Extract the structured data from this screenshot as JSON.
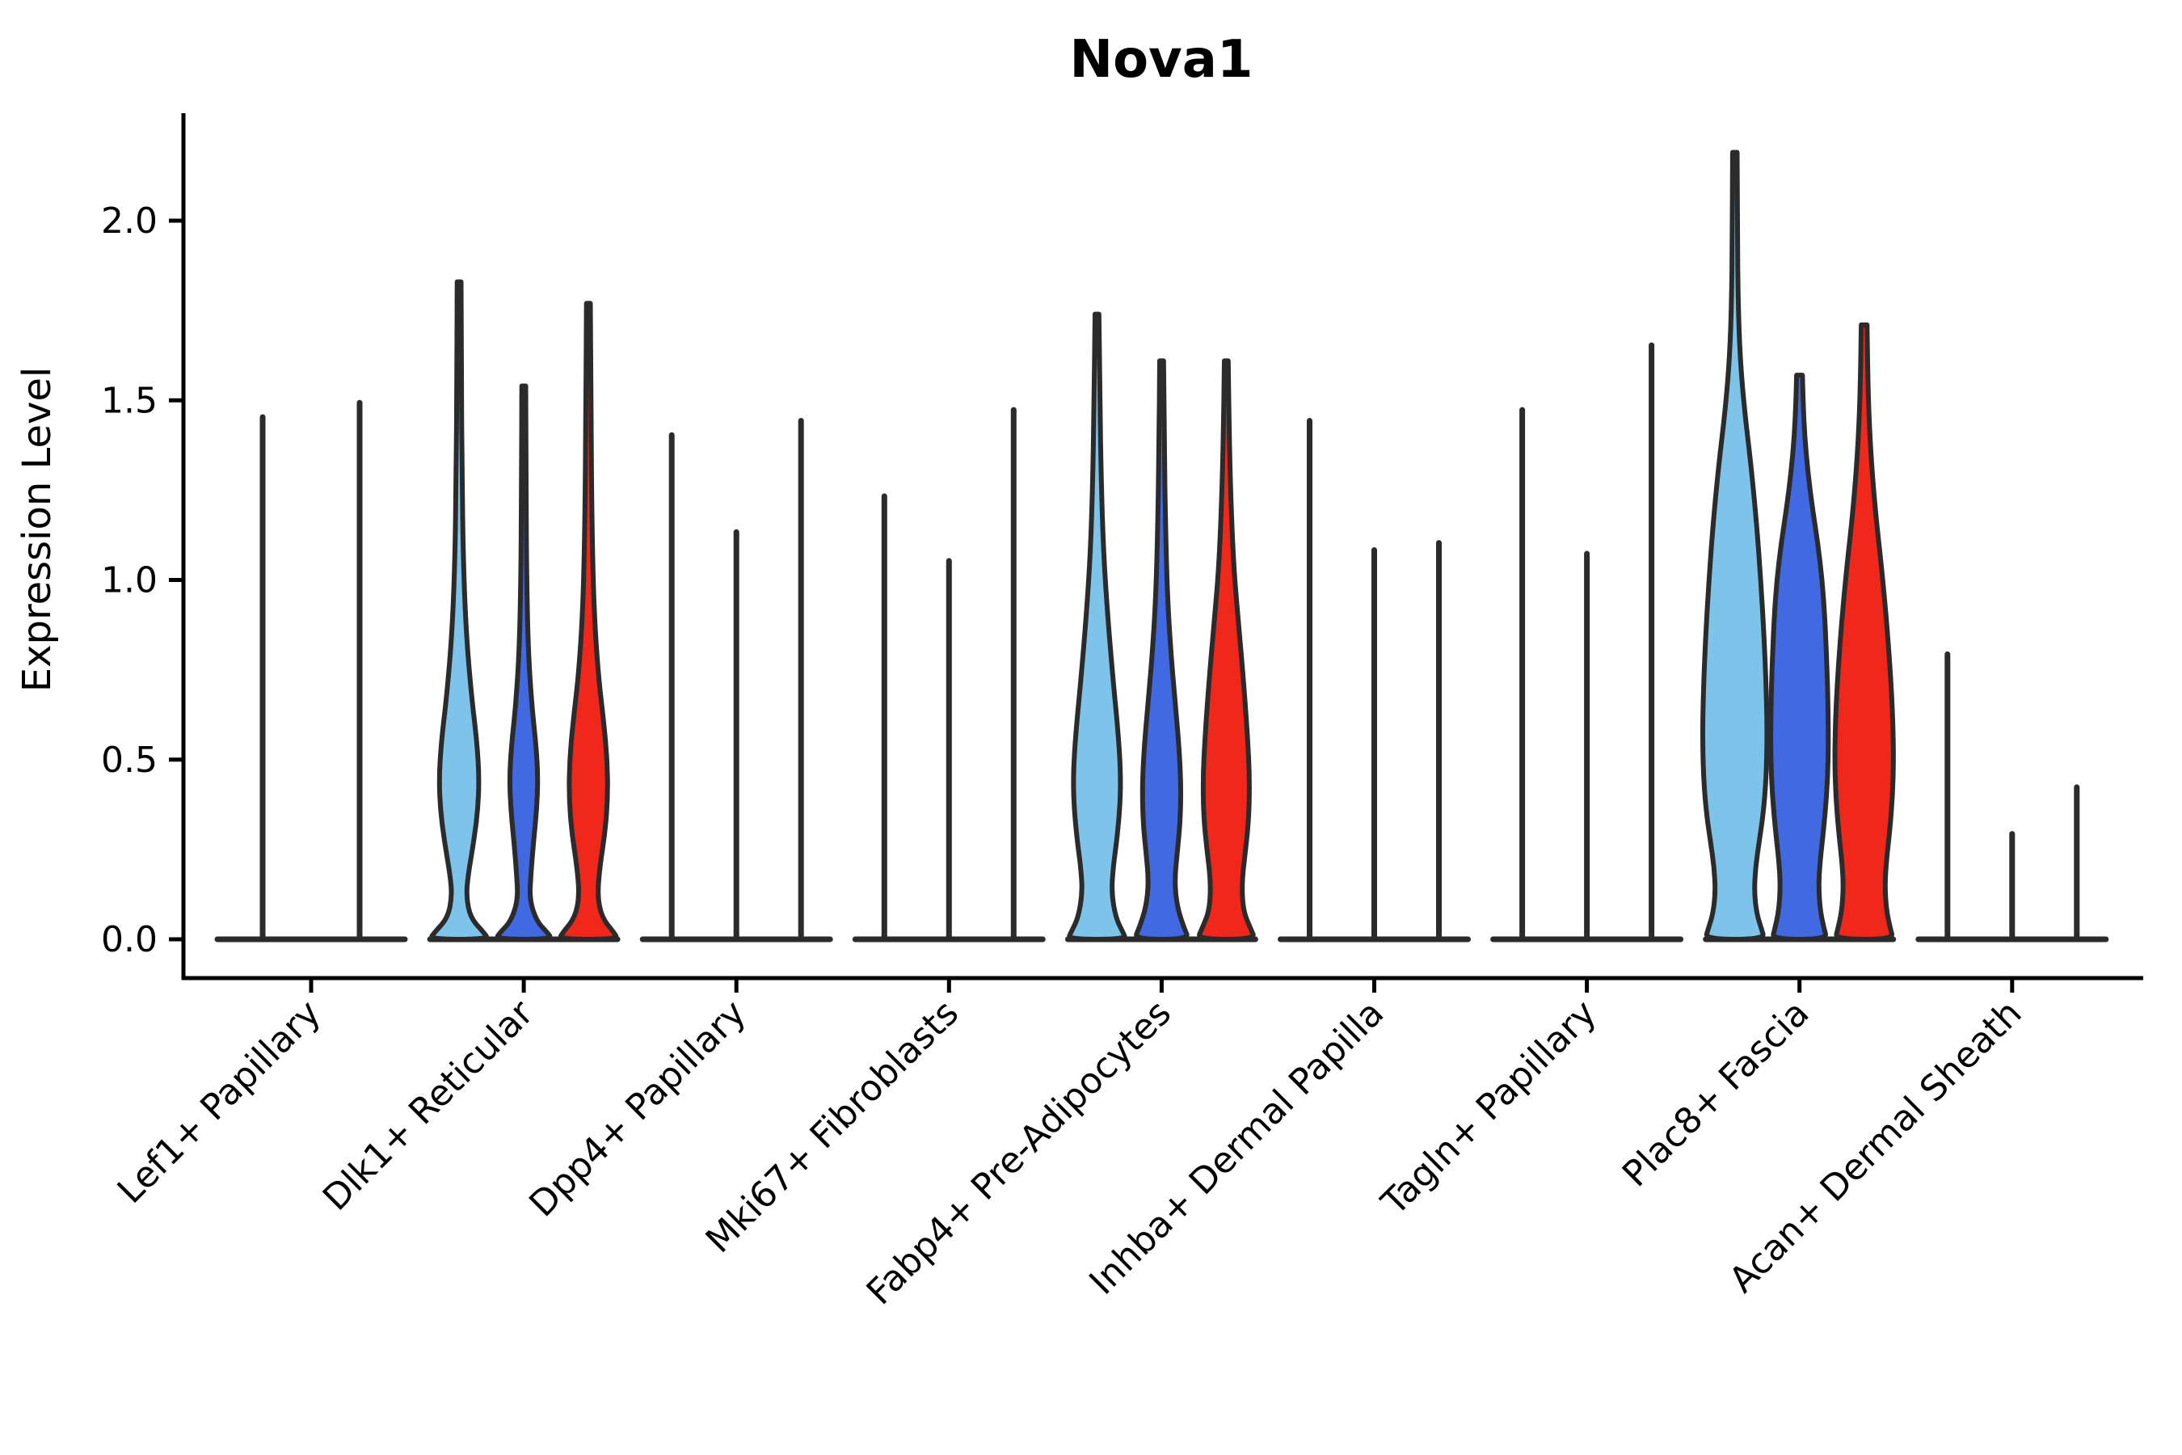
{
  "chart_data": {
    "type": "violin",
    "title": "Nova1",
    "ylabel": "Expression Level",
    "xlabel": "",
    "ylim": [
      0,
      2.3
    ],
    "yticks": [
      0,
      0.5,
      1.0,
      1.5,
      2.0
    ],
    "ytick_labels": [
      "0.0",
      "0.5",
      "1.0",
      "1.5",
      "2.0"
    ],
    "grid": false,
    "legend": "none",
    "colors": {
      "light_blue": "#7EC4EA",
      "blue": "#4169E1",
      "red": "#F0281C",
      "outline": "#2B2B2B",
      "axis": "#000000"
    },
    "categories": [
      "Lef1+ Papillary",
      "Dlk1+ Reticular",
      "Dpp4+ Papillary",
      "Mki67+ Fibroblasts",
      "Fabp4+ Pre-Adipocytes",
      "Inhba+ Dermal Papilla",
      "Tagln+ Papillary",
      "Plac8+ Fascia",
      "Acan+ Dermal Sheath"
    ],
    "groups": [
      {
        "category": "Lef1+ Papillary",
        "violins": [
          {
            "color_key": null,
            "shape": "spike",
            "max": 1.46
          },
          {
            "color_key": null,
            "shape": "spike",
            "max": 1.5
          }
        ]
      },
      {
        "category": "Dlk1+ Reticular",
        "violins": [
          {
            "color_key": "light_blue",
            "shape": "body",
            "max": 1.83,
            "profile": [
              [
                1.83,
                0.06
              ],
              [
                1.55,
                0.07
              ],
              [
                1.3,
                0.09
              ],
              [
                1.05,
                0.13
              ],
              [
                0.85,
                0.22
              ],
              [
                0.68,
                0.38
              ],
              [
                0.55,
                0.55
              ],
              [
                0.45,
                0.62
              ],
              [
                0.36,
                0.58
              ],
              [
                0.27,
                0.45
              ],
              [
                0.18,
                0.28
              ],
              [
                0.12,
                0.22
              ],
              [
                0.06,
                0.35
              ],
              [
                0.02,
                0.75
              ],
              [
                0,
                0.92
              ]
            ]
          },
          {
            "color_key": "blue",
            "shape": "body",
            "max": 1.54,
            "profile": [
              [
                1.54,
                0.06
              ],
              [
                1.25,
                0.07
              ],
              [
                1.0,
                0.09
              ],
              [
                0.8,
                0.14
              ],
              [
                0.65,
                0.25
              ],
              [
                0.54,
                0.38
              ],
              [
                0.45,
                0.44
              ],
              [
                0.36,
                0.4
              ],
              [
                0.27,
                0.3
              ],
              [
                0.18,
                0.22
              ],
              [
                0.11,
                0.18
              ],
              [
                0.05,
                0.4
              ],
              [
                0.02,
                0.72
              ],
              [
                0,
                0.88
              ]
            ]
          },
          {
            "color_key": "red",
            "shape": "body",
            "max": 1.77,
            "profile": [
              [
                1.77,
                0.06
              ],
              [
                1.45,
                0.08
              ],
              [
                1.15,
                0.11
              ],
              [
                0.92,
                0.17
              ],
              [
                0.74,
                0.3
              ],
              [
                0.6,
                0.48
              ],
              [
                0.5,
                0.58
              ],
              [
                0.4,
                0.6
              ],
              [
                0.3,
                0.52
              ],
              [
                0.2,
                0.35
              ],
              [
                0.12,
                0.28
              ],
              [
                0.06,
                0.42
              ],
              [
                0.02,
                0.78
              ],
              [
                0,
                0.92
              ]
            ]
          }
        ]
      },
      {
        "category": "Dpp4+ Papillary",
        "violins": [
          {
            "color_key": "light_blue",
            "shape": "spike",
            "max": 1.41
          },
          {
            "color_key": "blue",
            "shape": "spike",
            "max": 1.14
          },
          {
            "color_key": "red",
            "shape": "spike",
            "max": 1.45
          }
        ]
      },
      {
        "category": "Mki67+ Fibroblasts",
        "violins": [
          {
            "color_key": "light_blue",
            "shape": "spike",
            "max": 1.24
          },
          {
            "color_key": "blue",
            "shape": "spike",
            "max": 1.06
          },
          {
            "color_key": "red",
            "shape": "spike",
            "max": 1.48
          }
        ]
      },
      {
        "category": "Fabp4+ Pre-Adipocytes",
        "violins": [
          {
            "color_key": "light_blue",
            "shape": "body",
            "max": 1.74,
            "profile": [
              [
                1.74,
                0.06
              ],
              [
                1.5,
                0.09
              ],
              [
                1.28,
                0.13
              ],
              [
                1.08,
                0.2
              ],
              [
                0.9,
                0.33
              ],
              [
                0.72,
                0.5
              ],
              [
                0.58,
                0.65
              ],
              [
                0.47,
                0.73
              ],
              [
                0.38,
                0.72
              ],
              [
                0.28,
                0.62
              ],
              [
                0.2,
                0.5
              ],
              [
                0.13,
                0.45
              ],
              [
                0.06,
                0.58
              ],
              [
                0.02,
                0.8
              ],
              [
                0,
                0.9
              ]
            ]
          },
          {
            "color_key": "blue",
            "shape": "body",
            "max": 1.61,
            "profile": [
              [
                1.61,
                0.06
              ],
              [
                1.38,
                0.08
              ],
              [
                1.15,
                0.12
              ],
              [
                0.95,
                0.18
              ],
              [
                0.78,
                0.3
              ],
              [
                0.63,
                0.45
              ],
              [
                0.52,
                0.55
              ],
              [
                0.42,
                0.6
              ],
              [
                0.32,
                0.57
              ],
              [
                0.24,
                0.48
              ],
              [
                0.16,
                0.4
              ],
              [
                0.09,
                0.48
              ],
              [
                0.03,
                0.7
              ],
              [
                0,
                0.85
              ]
            ]
          },
          {
            "color_key": "red",
            "shape": "body",
            "max": 1.61,
            "profile": [
              [
                1.61,
                0.06
              ],
              [
                1.4,
                0.09
              ],
              [
                1.2,
                0.15
              ],
              [
                1.02,
                0.24
              ],
              [
                0.86,
                0.4
              ],
              [
                0.7,
                0.55
              ],
              [
                0.56,
                0.66
              ],
              [
                0.45,
                0.72
              ],
              [
                0.34,
                0.7
              ],
              [
                0.25,
                0.6
              ],
              [
                0.16,
                0.48
              ],
              [
                0.08,
                0.52
              ],
              [
                0.03,
                0.75
              ],
              [
                0,
                0.9
              ]
            ]
          }
        ]
      },
      {
        "category": "Inhba+ Dermal Papilla",
        "violins": [
          {
            "color_key": "light_blue",
            "shape": "spike",
            "max": 1.45
          },
          {
            "color_key": "blue",
            "shape": "spike",
            "max": 1.09
          },
          {
            "color_key": "red",
            "shape": "spike",
            "max": 1.11
          }
        ]
      },
      {
        "category": "Tagln+ Papillary",
        "violins": [
          {
            "color_key": "light_blue",
            "shape": "spike",
            "max": 1.48
          },
          {
            "color_key": "blue",
            "shape": "spike",
            "max": 1.08
          },
          {
            "color_key": "red",
            "shape": "spike",
            "max": 1.66
          }
        ]
      },
      {
        "category": "Plac8+ Fascia",
        "violins": [
          {
            "color_key": "light_blue",
            "shape": "body",
            "max": 2.19,
            "profile": [
              [
                2.19,
                0.07
              ],
              [
                1.95,
                0.08
              ],
              [
                1.78,
                0.1
              ],
              [
                1.62,
                0.16
              ],
              [
                1.47,
                0.3
              ],
              [
                1.32,
                0.5
              ],
              [
                1.15,
                0.68
              ],
              [
                1.0,
                0.8
              ],
              [
                0.85,
                0.9
              ],
              [
                0.7,
                0.97
              ],
              [
                0.57,
                1.0
              ],
              [
                0.45,
                0.97
              ],
              [
                0.35,
                0.88
              ],
              [
                0.27,
                0.75
              ],
              [
                0.2,
                0.64
              ],
              [
                0.13,
                0.6
              ],
              [
                0.07,
                0.68
              ],
              [
                0.03,
                0.82
              ],
              [
                0,
                0.92
              ]
            ]
          },
          {
            "color_key": "blue",
            "shape": "body",
            "max": 1.57,
            "profile": [
              [
                1.57,
                0.09
              ],
              [
                1.5,
                0.11
              ],
              [
                1.4,
                0.16
              ],
              [
                1.3,
                0.26
              ],
              [
                1.2,
                0.4
              ],
              [
                1.1,
                0.57
              ],
              [
                1.0,
                0.7
              ],
              [
                0.9,
                0.78
              ],
              [
                0.8,
                0.83
              ],
              [
                0.7,
                0.87
              ],
              [
                0.6,
                0.89
              ],
              [
                0.5,
                0.89
              ],
              [
                0.4,
                0.84
              ],
              [
                0.3,
                0.74
              ],
              [
                0.22,
                0.64
              ],
              [
                0.15,
                0.59
              ],
              [
                0.08,
                0.64
              ],
              [
                0.03,
                0.76
              ],
              [
                0,
                0.85
              ]
            ]
          },
          {
            "color_key": "red",
            "shape": "body",
            "max": 1.71,
            "profile": [
              [
                1.71,
                0.09
              ],
              [
                1.58,
                0.11
              ],
              [
                1.45,
                0.15
              ],
              [
                1.32,
                0.23
              ],
              [
                1.18,
                0.36
              ],
              [
                1.05,
                0.52
              ],
              [
                0.93,
                0.65
              ],
              [
                0.82,
                0.75
              ],
              [
                0.7,
                0.84
              ],
              [
                0.6,
                0.89
              ],
              [
                0.5,
                0.91
              ],
              [
                0.4,
                0.88
              ],
              [
                0.3,
                0.79
              ],
              [
                0.22,
                0.69
              ],
              [
                0.15,
                0.64
              ],
              [
                0.08,
                0.69
              ],
              [
                0.03,
                0.81
              ],
              [
                0,
                0.9
              ]
            ]
          }
        ]
      },
      {
        "category": "Acan+ Dermal Sheath",
        "violins": [
          {
            "color_key": "light_blue",
            "shape": "spike",
            "max": 0.8
          },
          {
            "color_key": "blue",
            "shape": "spike",
            "max": 0.3
          },
          {
            "color_key": "red",
            "shape": "spike",
            "max": 0.43
          }
        ]
      }
    ]
  }
}
